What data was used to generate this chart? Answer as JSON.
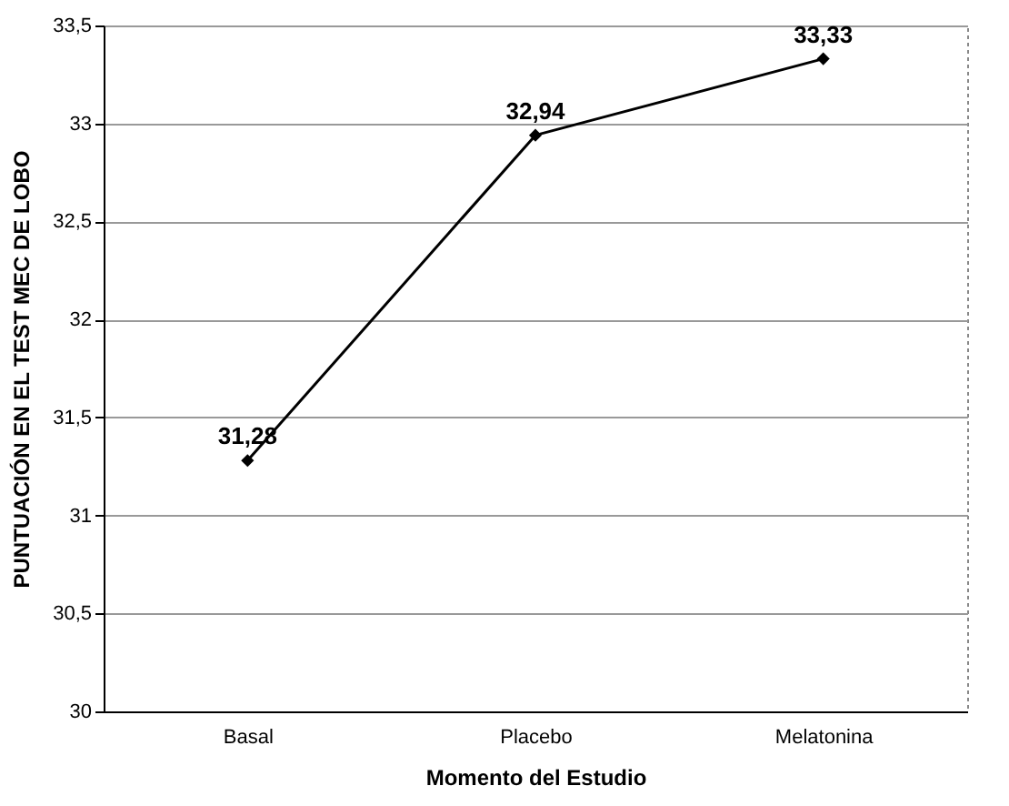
{
  "chart_data": {
    "type": "line",
    "xlabel": "Momento del Estudio",
    "ylabel": "PUNTUACIÓN EN EL TEST MEC DE LOBO",
    "categories": [
      "Basal",
      "Placebo",
      "Melatonina"
    ],
    "series": [
      {
        "color": "#000000",
        "values": [
          31.28,
          32.94,
          33.33
        ],
        "value_labels": [
          "31,28",
          "32,94",
          "33,33"
        ]
      }
    ],
    "ylim": [
      30,
      33.5
    ],
    "yticks": [
      30,
      {
        "value": 30.5,
        "label": "30,5"
      },
      31,
      {
        "value": 31.5,
        "label": "31,5"
      },
      32,
      {
        "value": 32.5,
        "label": "32,5"
      },
      33,
      {
        "value": 33.5,
        "label": "33,5"
      }
    ],
    "grid": "y",
    "marker": "diamond",
    "line_style": "solid"
  }
}
